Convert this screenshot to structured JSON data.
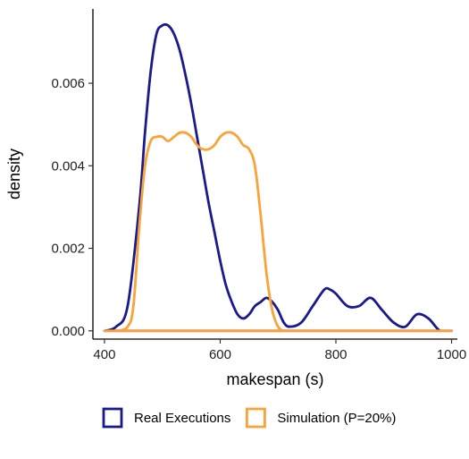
{
  "chart_data": {
    "type": "area",
    "xlabel": "makespan (s)",
    "ylabel": "density",
    "xlim": [
      380,
      1010
    ],
    "ylim": [
      -0.0002,
      0.0078
    ],
    "x_ticks": [
      400,
      600,
      800,
      1000
    ],
    "y_ticks": [
      0.0,
      0.002,
      0.004,
      0.006
    ],
    "x_tick_labels": [
      "400",
      "600",
      "800",
      "1000"
    ],
    "y_tick_labels": [
      "0.000",
      "0.002",
      "0.004",
      "0.006"
    ],
    "grid": false,
    "legend_position": "bottom",
    "series": [
      {
        "name": "Real Executions",
        "color": "#1a1a8c",
        "fill": "none",
        "x": [
          400,
          420,
          440,
          460,
          470,
          480,
          490,
          500,
          510,
          520,
          530,
          540,
          550,
          560,
          570,
          580,
          590,
          600,
          610,
          620,
          630,
          640,
          650,
          660,
          670,
          680,
          690,
          700,
          710,
          720,
          740,
          760,
          780,
          790,
          800,
          820,
          840,
          860,
          880,
          900,
          920,
          940,
          960,
          980,
          1000
        ],
        "y": [
          0.0,
          0.0001,
          0.0006,
          0.003,
          0.0048,
          0.0063,
          0.0072,
          0.0074,
          0.0074,
          0.0072,
          0.0068,
          0.0062,
          0.0055,
          0.0047,
          0.0039,
          0.0031,
          0.0024,
          0.0017,
          0.0011,
          0.0007,
          0.0004,
          0.0003,
          0.0004,
          0.0006,
          0.0007,
          0.0008,
          0.0007,
          0.0005,
          0.0002,
          0.0001,
          0.0002,
          0.0006,
          0.001,
          0.001,
          0.0009,
          0.0006,
          0.0006,
          0.0008,
          0.0005,
          0.0002,
          0.0001,
          0.0004,
          0.0003,
          0.0,
          0.0
        ]
      },
      {
        "name": "Simulation (P=20%)",
        "color": "#f9a33a",
        "fill": "none",
        "x": [
          400,
          420,
          440,
          450,
          460,
          470,
          480,
          490,
          500,
          510,
          520,
          530,
          540,
          550,
          560,
          570,
          580,
          590,
          600,
          610,
          620,
          630,
          640,
          650,
          660,
          670,
          680,
          690,
          700,
          710,
          720,
          740,
          800,
          900,
          1000
        ],
        "y": [
          0.0,
          0.0,
          0.0001,
          0.0006,
          0.0025,
          0.004,
          0.0046,
          0.0047,
          0.0047,
          0.0046,
          0.0047,
          0.0048,
          0.0048,
          0.0047,
          0.0045,
          0.0044,
          0.0044,
          0.0045,
          0.0047,
          0.0048,
          0.0048,
          0.0047,
          0.0045,
          0.0044,
          0.004,
          0.0028,
          0.0014,
          0.0005,
          0.0001,
          0.0,
          0.0,
          0.0,
          0.0,
          0.0,
          0.0
        ]
      }
    ]
  }
}
